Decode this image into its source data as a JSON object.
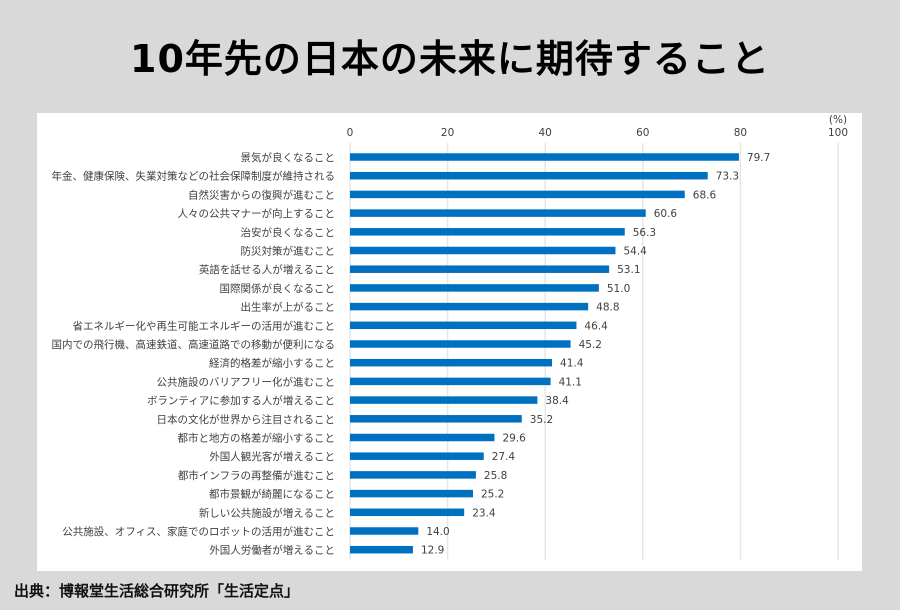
{
  "title": "10年先の日本の未来に期待すること",
  "source": "出典：博報堂生活総合研究所「生活定点」",
  "colors": {
    "bar": "#0070c0",
    "grid": "#e6e6e6",
    "text": "#404040",
    "background": "#d9d9d9",
    "panel": "#ffffff"
  },
  "chart_data": {
    "type": "bar",
    "orientation": "horizontal",
    "title": "10年先の日本の未来に期待すること",
    "unit_label": "(%)",
    "xlim": [
      0,
      100
    ],
    "xticks": [
      0,
      20,
      40,
      60,
      80,
      100
    ],
    "grid": true,
    "categories": [
      "景気が良くなること",
      "年金、健康保険、失業対策などの社会保障制度が維持される",
      "自然災害からの復興が進むこと",
      "人々の公共マナーが向上すること",
      "治安が良くなること",
      "防災対策が進むこと",
      "英語を話せる人が増えること",
      "国際関係が良くなること",
      "出生率が上がること",
      "省エネルギー化や再生可能エネルギーの活用が進むこと",
      "国内での飛行機、高速鉄道、高速道路での移動が便利になる",
      "経済的格差が縮小すること",
      "公共施設のバリアフリー化が進むこと",
      "ボランティアに参加する人が増えること",
      "日本の文化が世界から注目されること",
      "都市と地方の格差が縮小すること",
      "外国人観光客が増えること",
      "都市インフラの再整備が進むこと",
      "都市景観が綺麗になること",
      "新しい公共施設が増えること",
      "公共施設、オフィス、家庭でのロボットの活用が進むこと",
      "外国人労働者が増えること"
    ],
    "values": [
      79.7,
      73.3,
      68.6,
      60.6,
      56.3,
      54.4,
      53.1,
      51.0,
      48.8,
      46.4,
      45.2,
      41.4,
      41.1,
      38.4,
      35.2,
      29.6,
      27.4,
      25.8,
      25.2,
      23.4,
      14.0,
      12.9
    ],
    "value_labels": [
      "79.7",
      "73.3",
      "68.6",
      "60.6",
      "56.3",
      "54.4",
      "53.1",
      "51.0",
      "48.8",
      "46.4",
      "45.2",
      "41.4",
      "41.1",
      "38.4",
      "35.2",
      "29.6",
      "27.4",
      "25.8",
      "25.2",
      "23.4",
      "14.0",
      "12.9"
    ]
  }
}
